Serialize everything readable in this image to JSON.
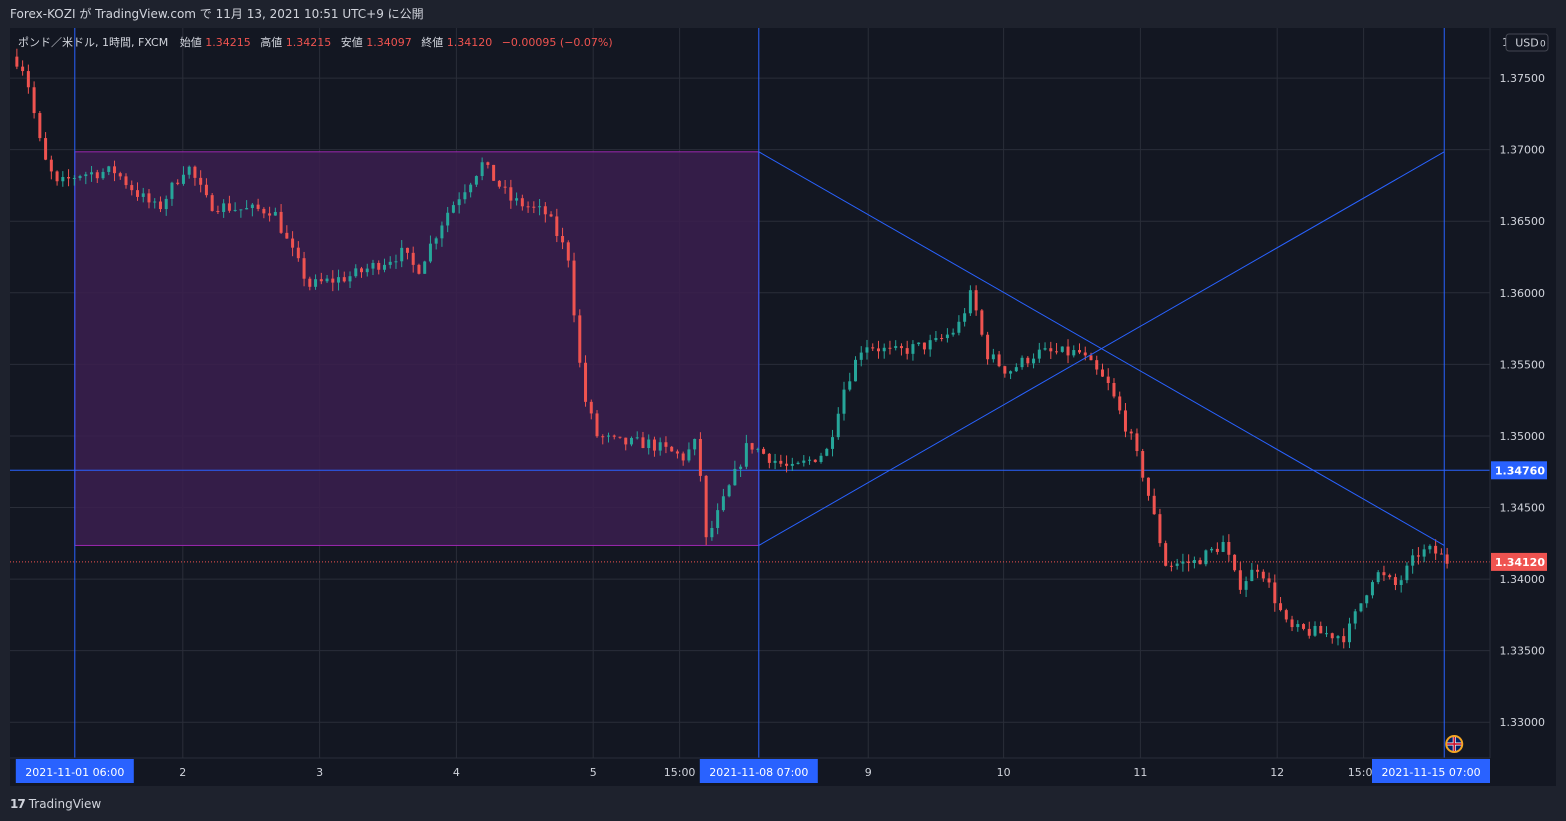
{
  "header": {
    "publish_text": "Forex-KOZI が TradingView.com で 11月 13, 2021 10:51 UTC+9 に公開"
  },
  "legend": {
    "symbol": "ポンド／米ドル, 1時間, FXCM",
    "open_label": "始値",
    "open_value": "1.34215",
    "high_label": "高値",
    "high_value": "1.34215",
    "low_label": "安値",
    "low_value": "1.34097",
    "close_label": "終値",
    "close_value": "1.34120",
    "change": "−0.00095 (−0.07%)"
  },
  "currency_button": "USD",
  "footer": {
    "brand": "TradingView",
    "logo_glyph": "17"
  },
  "colors": {
    "background": "#131722",
    "frame": "#1e222d",
    "grid": "#2a2e39",
    "up": "#26a69a",
    "down": "#ef5350",
    "line": "#2962ff",
    "box_fill": "#3b1f4f",
    "box_border": "#9c27b0"
  },
  "chart_data": {
    "type": "candlestick",
    "y_axis": {
      "range": [
        1.3275,
        1.3785
      ],
      "ticks": [
        "1.33000",
        "1.33500",
        "1.34000",
        "1.34500",
        "1.35000",
        "1.35500",
        "1.36000",
        "1.36500",
        "1.37000",
        "1.37500"
      ],
      "top_label": "1.",
      "grid": true
    },
    "x_axis": {
      "ticks": [
        {
          "t": 0.12,
          "label": "2"
        },
        {
          "t": 0.215,
          "label": "3"
        },
        {
          "t": 0.31,
          "label": "4"
        },
        {
          "t": 0.405,
          "label": "5"
        },
        {
          "t": 0.465,
          "label": "15:00"
        },
        {
          "t": 0.596,
          "label": "9"
        },
        {
          "t": 0.69,
          "label": "10"
        },
        {
          "t": 0.785,
          "label": "11"
        },
        {
          "t": 0.88,
          "label": "12"
        },
        {
          "t": 0.94,
          "label": "15:00"
        }
      ],
      "highlighted": [
        {
          "t": 0.045,
          "label": "2021-11-01   06:00"
        },
        {
          "t": 0.52,
          "label": "2021-11-08   07:00"
        },
        {
          "t": 0.996,
          "label": "2021-11-15   07:00"
        }
      ]
    },
    "range_box": {
      "t0": 0.045,
      "t1": 0.52,
      "price_top": 1.36985,
      "price_bottom": 1.34235
    },
    "horizontal_line": {
      "price": 1.3476,
      "label": "1.34760"
    },
    "last_price": {
      "price": 1.3412,
      "label": "1.34120"
    },
    "trend_lines": [
      {
        "t0": 0.52,
        "p0": 1.36985,
        "t1": 0.996,
        "p1": 1.34235
      },
      {
        "t0": 0.52,
        "p0": 1.34235,
        "t1": 0.996,
        "p1": 1.36985
      }
    ],
    "price_path": [
      [
        0.0,
        1.3765
      ],
      [
        0.008,
        1.3755
      ],
      [
        0.02,
        1.3695
      ],
      [
        0.03,
        1.3675
      ],
      [
        0.045,
        1.3683
      ],
      [
        0.07,
        1.3685
      ],
      [
        0.085,
        1.367
      ],
      [
        0.1,
        1.3658
      ],
      [
        0.12,
        1.369
      ],
      [
        0.135,
        1.3662
      ],
      [
        0.16,
        1.3658
      ],
      [
        0.18,
        1.3658
      ],
      [
        0.19,
        1.3635
      ],
      [
        0.205,
        1.3605
      ],
      [
        0.235,
        1.3612
      ],
      [
        0.27,
        1.3628
      ],
      [
        0.28,
        1.3615
      ],
      [
        0.3,
        1.3655
      ],
      [
        0.325,
        1.369
      ],
      [
        0.345,
        1.3665
      ],
      [
        0.37,
        1.3655
      ],
      [
        0.385,
        1.3625
      ],
      [
        0.395,
        1.353
      ],
      [
        0.405,
        1.35
      ],
      [
        0.42,
        1.3495
      ],
      [
        0.44,
        1.3495
      ],
      [
        0.465,
        1.3485
      ],
      [
        0.475,
        1.3497
      ],
      [
        0.48,
        1.3425
      ],
      [
        0.49,
        1.3448
      ],
      [
        0.51,
        1.3495
      ],
      [
        0.52,
        1.3488
      ],
      [
        0.54,
        1.3476
      ],
      [
        0.565,
        1.349
      ],
      [
        0.575,
        1.353
      ],
      [
        0.59,
        1.3565
      ],
      [
        0.61,
        1.3558
      ],
      [
        0.64,
        1.3565
      ],
      [
        0.655,
        1.3575
      ],
      [
        0.665,
        1.36
      ],
      [
        0.675,
        1.3558
      ],
      [
        0.69,
        1.3545
      ],
      [
        0.71,
        1.3558
      ],
      [
        0.74,
        1.3558
      ],
      [
        0.76,
        1.3535
      ],
      [
        0.775,
        1.35
      ],
      [
        0.785,
        1.347
      ],
      [
        0.8,
        1.341
      ],
      [
        0.82,
        1.3412
      ],
      [
        0.84,
        1.3425
      ],
      [
        0.85,
        1.3395
      ],
      [
        0.865,
        1.341
      ],
      [
        0.885,
        1.3365
      ],
      [
        0.91,
        1.3362
      ],
      [
        0.925,
        1.336
      ],
      [
        0.945,
        1.3405
      ],
      [
        0.96,
        1.3395
      ],
      [
        0.975,
        1.3418
      ],
      [
        0.985,
        1.342
      ],
      [
        0.996,
        1.3412
      ]
    ],
    "markers": [
      {
        "t": 0.996,
        "name": "uk-flag-icon"
      }
    ]
  }
}
